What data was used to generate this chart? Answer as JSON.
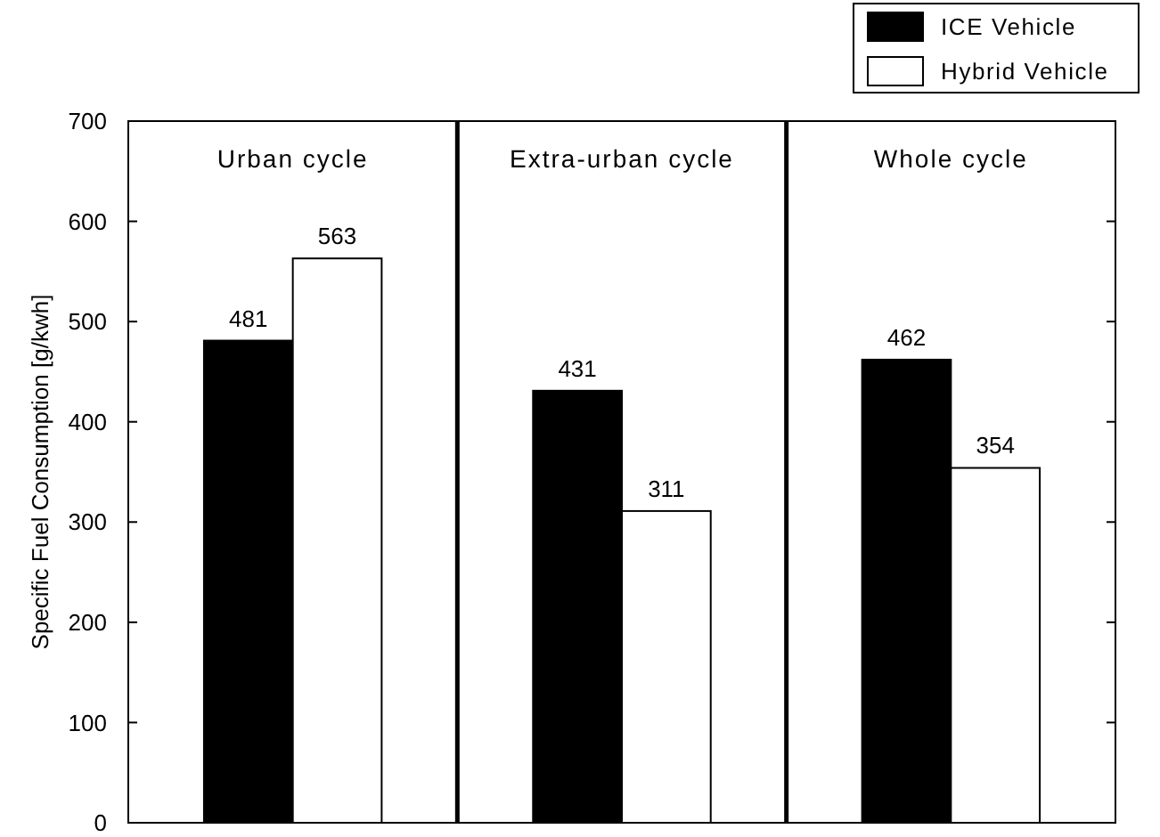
{
  "chart_data": {
    "type": "bar",
    "ylabel": "Specific Fuel Consumption [g/kwh]",
    "categories": [
      "Urban cycle",
      "Extra-urban cycle",
      "Whole cycle"
    ],
    "series": [
      {
        "name": "ICE Vehicle",
        "color": "#000000",
        "values": [
          481,
          431,
          462
        ]
      },
      {
        "name": "Hybrid Vehicle",
        "color": "#ffffff",
        "values": [
          563,
          311,
          354
        ]
      }
    ],
    "ylim": [
      0,
      700
    ],
    "yticks": [
      0,
      100,
      200,
      300,
      400,
      500,
      600,
      700
    ],
    "data_labels": true,
    "legend": "top right",
    "grid": false
  }
}
